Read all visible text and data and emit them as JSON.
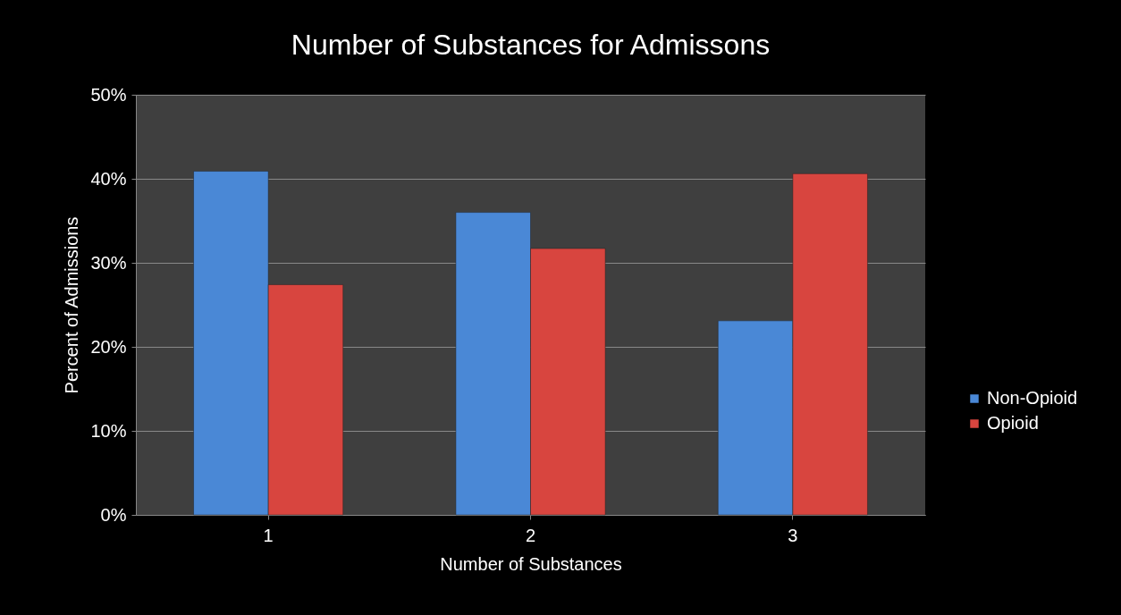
{
  "chart_data": {
    "type": "bar",
    "title": "Number of Substances for Admissons",
    "xlabel": "Number of Substances",
    "ylabel": "Percent of Admissions",
    "categories": [
      "1",
      "2",
      "3"
    ],
    "series": [
      {
        "name": "Non-Opioid",
        "color": "#4a88d6",
        "values": [
          40.9,
          36,
          23.1
        ]
      },
      {
        "name": "Opioid",
        "color": "#d8453f",
        "values": [
          27.4,
          31.7,
          40.6
        ]
      }
    ],
    "ylim": [
      0,
      50
    ],
    "yticks": [
      {
        "value": 0,
        "label": "0%"
      },
      {
        "value": 10,
        "label": "10%"
      },
      {
        "value": 20,
        "label": "20%"
      },
      {
        "value": 30,
        "label": "30%"
      },
      {
        "value": 40,
        "label": "40%"
      },
      {
        "value": 50,
        "label": "50%"
      }
    ],
    "grid": "y",
    "legend": "right"
  }
}
